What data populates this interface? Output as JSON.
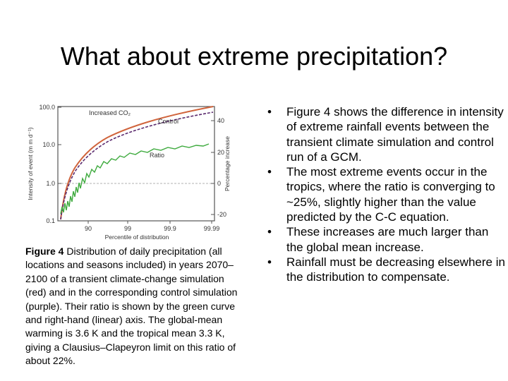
{
  "slide": {
    "title": "What about extreme precipitation?"
  },
  "figure": {
    "y_left_label": "Intensity of event (m m d⁻¹)",
    "y_right_label": "Percentage increase",
    "x_label": "Percentile of distribution",
    "left_ticks": [
      "100.0",
      "10.0",
      "1.0",
      "0.1"
    ],
    "right_ticks": [
      "40",
      "20",
      "0",
      "-20"
    ],
    "x_ticks": [
      "90",
      "99",
      "99.9",
      "99.99"
    ],
    "series_labels": {
      "increased": "Increased CO₂",
      "control": "Control",
      "ratio": "Ratio"
    },
    "colors": {
      "increased": "#d0643c",
      "control": "#5a2a6e",
      "ratio": "#3daa3d",
      "frame": "#555555"
    }
  },
  "caption": {
    "label": "Figure 4",
    "text": " Distribution of daily precipitation (all locations and seasons included) in years 2070–2100 of a transient climate-change simulation (red) and in the corresponding control simulation (purple). Their ratio is shown by the green curve and right-hand (linear) axis. The global-mean warming is 3.6 K and the tropical mean 3.3 K, giving a Clausius–Clapeyron limit on this ratio of about 22%."
  },
  "bullets": [
    {
      "marker": "•",
      "text": "Figure 4 shows the difference in intensity of extreme rainfall events between the transient climate simulation and control run of a GCM."
    },
    {
      "marker": "•",
      "text": "The most extreme events occur in the tropics, where the ratio is converging to ~25%, slightly higher than the value predicted by the C-C equation."
    },
    {
      "marker": "•",
      "text": "These increases are much larger than the global mean increase."
    },
    {
      "marker": "•",
      "text": "Rainfall must be decreasing elsewhere in the distribution to compensate."
    }
  ]
}
